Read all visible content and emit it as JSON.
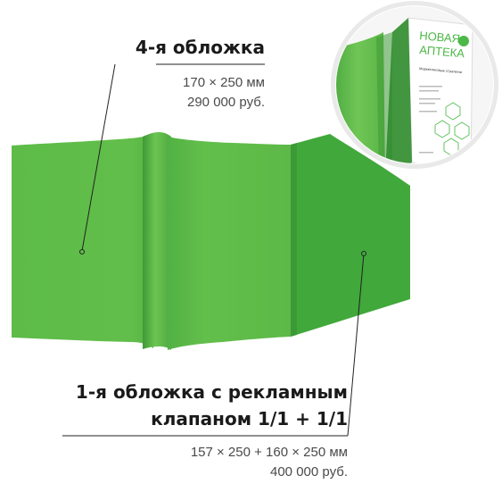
{
  "back_cover": {
    "title": "4-я обложка",
    "size": "170 × 250 мм",
    "price": "290 000 руб."
  },
  "front_cover": {
    "title_line1": "1-я обложка с рекламным",
    "title_line2": "клапаном 1/1 + 1/1",
    "size": "157 × 250 + 160 × 250 мм",
    "price": "400 000 руб."
  },
  "magazine": {
    "name_line1": "НОВАЯ",
    "name_line2": "АПТЕКА",
    "subtitle": "Маркетинговые стратегии"
  },
  "colors": {
    "cover_green": "#5cba47",
    "cover_green_dark": "#44a83c",
    "flap_green": "#41a83b",
    "logo_green": "#4cb848",
    "leader": "#222222"
  }
}
